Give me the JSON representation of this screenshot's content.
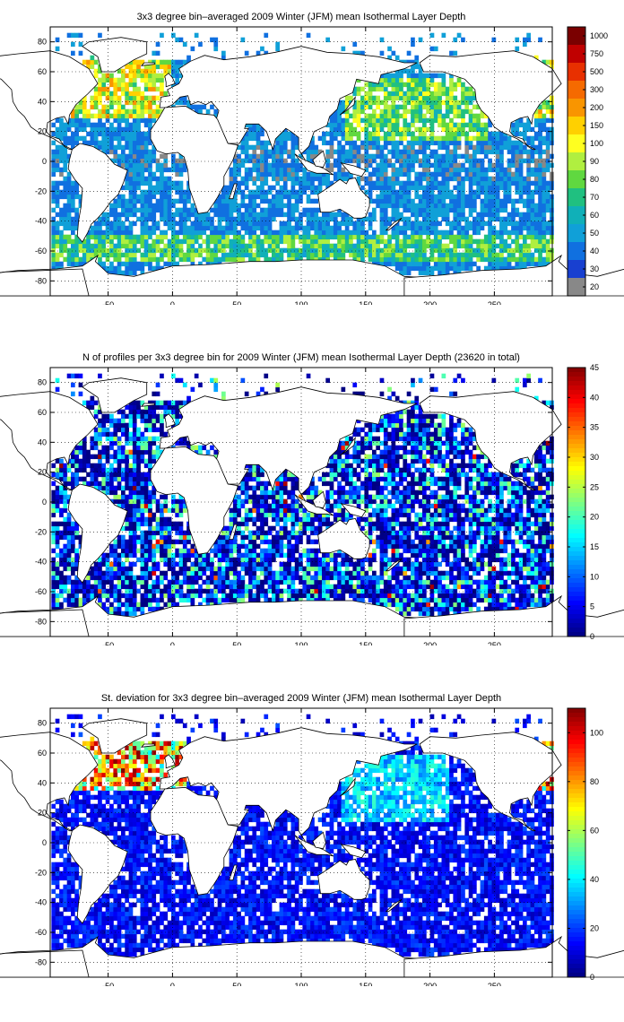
{
  "panels": [
    {
      "title": "3x3 degree bin–averaged 2009 Winter (JFM) mean Isothermal Layer Depth",
      "colorbar": {
        "type": "categorical",
        "ticks": [
          "1000",
          "750",
          "500",
          "300",
          "200",
          "150",
          "100",
          "90",
          "80",
          "70",
          "60",
          "50",
          "40",
          "30",
          "20"
        ],
        "colors": [
          "#7a0000",
          "#c00000",
          "#e83000",
          "#f56a00",
          "#f99500",
          "#ffd000",
          "#ffff20",
          "#b0ef40",
          "#60d840",
          "#20c080",
          "#10b0b8",
          "#10a0d8",
          "#1070e0",
          "#1840d0",
          "#888888"
        ]
      },
      "field": "ild"
    },
    {
      "title": "N of profiles per 3x3 degree bin for 2009 Winter (JFM) mean Isothermal Layer Depth  (23620 in total)",
      "colorbar": {
        "type": "continuous",
        "min": 0,
        "max": 45,
        "ticks": [
          "45",
          "40",
          "35",
          "30",
          "25",
          "20",
          "15",
          "10",
          "5",
          "0"
        ]
      },
      "field": "count"
    },
    {
      "title": "St. deviation for 3x3 degree bin–averaged 2009 Winter (JFM) mean Isothermal Layer Depth",
      "colorbar": {
        "type": "continuous",
        "min": 0,
        "max": 110,
        "ticks": [
          "100",
          "80",
          "60",
          "40",
          "20",
          "0"
        ]
      },
      "field": "std"
    }
  ],
  "map_axes": {
    "x_ticks": [
      "-50",
      "0",
      "50",
      "100",
      "150",
      "200",
      "250"
    ],
    "y_ticks": [
      "80",
      "60",
      "40",
      "20",
      "0",
      "-20",
      "-40",
      "-60",
      "-80"
    ],
    "x_range": [
      -95,
      295
    ],
    "y_range": [
      -90,
      90
    ]
  }
}
